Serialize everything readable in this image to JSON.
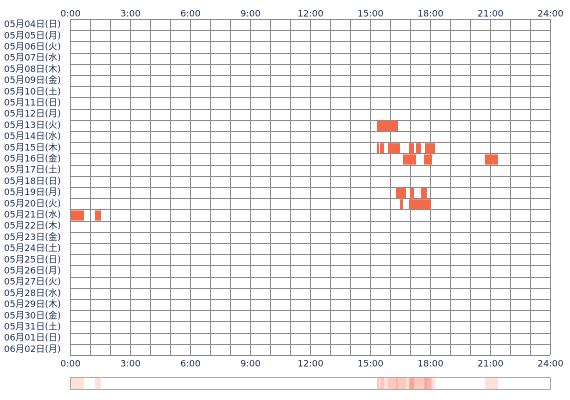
{
  "chart_data": {
    "type": "timeline",
    "rows": [
      "05月04日(日)",
      "05月05日(月)",
      "05月06日(火)",
      "05月07日(水)",
      "05月08日(木)",
      "05月09日(金)",
      "05月10日(土)",
      "05月11日(日)",
      "05月12日(月)",
      "05月13日(火)",
      "05月14日(水)",
      "05月15日(木)",
      "05月16日(金)",
      "05月17日(土)",
      "05月18日(日)",
      "05月19日(月)",
      "05月20日(火)",
      "05月21日(水)",
      "05月22日(木)",
      "05月23日(金)",
      "05月24日(土)",
      "05月25日(日)",
      "05月26日(月)",
      "05月27日(火)",
      "05月28日(水)",
      "05月29日(木)",
      "05月30日(金)",
      "05月31日(土)",
      "06月01日(日)",
      "06月02日(月)"
    ],
    "segments": [
      {
        "row": 9,
        "start": 15.35,
        "end": 16.4
      },
      {
        "row": 11,
        "start": 15.35,
        "end": 15.45
      },
      {
        "row": 11,
        "start": 15.5,
        "end": 15.7
      },
      {
        "row": 11,
        "start": 15.9,
        "end": 16.5
      },
      {
        "row": 11,
        "start": 16.95,
        "end": 17.2
      },
      {
        "row": 11,
        "start": 17.3,
        "end": 17.55
      },
      {
        "row": 11,
        "start": 17.75,
        "end": 18.25
      },
      {
        "row": 12,
        "start": 16.65,
        "end": 17.3
      },
      {
        "row": 12,
        "start": 17.7,
        "end": 18.1
      },
      {
        "row": 12,
        "start": 20.75,
        "end": 21.4
      },
      {
        "row": 15,
        "start": 16.3,
        "end": 16.8
      },
      {
        "row": 15,
        "start": 17.0,
        "end": 17.2
      },
      {
        "row": 15,
        "start": 17.55,
        "end": 17.85
      },
      {
        "row": 16,
        "start": 16.5,
        "end": 16.65
      },
      {
        "row": 16,
        "start": 16.95,
        "end": 18.05
      },
      {
        "row": 17,
        "start": 0.05,
        "end": 0.7
      },
      {
        "row": 17,
        "start": 1.25,
        "end": 1.55
      }
    ],
    "color": "#f4694a",
    "xlim": [
      0,
      24
    ],
    "xticks": [
      {
        "value": 0,
        "label": "0:00"
      },
      {
        "value": 3,
        "label": "3:00"
      },
      {
        "value": 6,
        "label": "6:00"
      },
      {
        "value": 9,
        "label": "9:00"
      },
      {
        "value": 12,
        "label": "12:00"
      },
      {
        "value": 15,
        "label": "15:00"
      },
      {
        "value": 18,
        "label": "18:00"
      },
      {
        "value": 21,
        "label": "21:00"
      },
      {
        "value": 24,
        "label": "24:00"
      }
    ]
  }
}
